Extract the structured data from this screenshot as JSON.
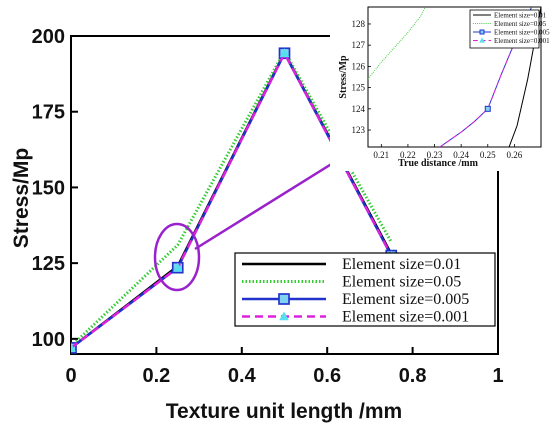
{
  "chart_data": [
    {
      "type": "line",
      "title": "",
      "xlabel": "Texture unit length /mm",
      "ylabel": "Stress/Mp",
      "xlim": [
        0,
        1
      ],
      "ylim": [
        95,
        200
      ],
      "xticks": [
        "0",
        "0.2",
        "0.4",
        "0.6",
        "0.8",
        "1"
      ],
      "yticks": [
        "100",
        "125",
        "150",
        "175",
        "200"
      ],
      "legend_position": "bottom-right",
      "series": [
        {
          "name": "Element size=0.01",
          "color": "#000000",
          "style": "solid",
          "marker": "none",
          "x": [
            0,
            0.25,
            0.5,
            0.75
          ],
          "y": [
            97,
            124,
            194.5,
            128
          ]
        },
        {
          "name": "Element size=0.05",
          "color": "#33cc33",
          "style": "dotted",
          "marker": "none",
          "x": [
            0,
            0.25,
            0.5,
            0.75
          ],
          "y": [
            97.5,
            131,
            195,
            132
          ]
        },
        {
          "name": "Element size=0.005",
          "color": "#2233cc",
          "style": "solid",
          "marker": "square",
          "x": [
            0,
            0.25,
            0.5,
            0.75
          ],
          "y": [
            97,
            123.5,
            194.3,
            127.5
          ]
        },
        {
          "name": "Element size=0.001",
          "color": "#dd22dd",
          "style": "dashed",
          "marker": "triangle",
          "x": [
            0,
            0.25,
            0.5,
            0.75
          ],
          "y": [
            97,
            123.5,
            194.3,
            127.5
          ]
        }
      ]
    },
    {
      "type": "line",
      "title": "",
      "xlabel": "True distance /mm",
      "ylabel": "Stress/Mp",
      "xlim": [
        0.205,
        0.27
      ],
      "ylim": [
        122.2,
        128.8
      ],
      "xticks": [
        "0.21",
        "0.22",
        "0.23",
        "0.24",
        "0.25",
        "0.26"
      ],
      "yticks": [
        "123",
        "124",
        "125",
        "126",
        "127",
        "128"
      ],
      "legend_position": "top-right",
      "series": [
        {
          "name": "Element size=0.01",
          "color": "#000000",
          "style": "solid",
          "marker": "none",
          "x": [
            0.258,
            0.261,
            0.265,
            0.27
          ],
          "y": [
            122.2,
            123.2,
            125.4,
            128.8
          ]
        },
        {
          "name": "Element size=0.05",
          "color": "#33cc33",
          "style": "dotted",
          "marker": "none",
          "x": [
            0.205,
            0.21,
            0.215,
            0.22,
            0.225,
            0.2265
          ],
          "y": [
            125.4,
            126.2,
            126.9,
            127.6,
            128.4,
            128.8
          ]
        },
        {
          "name": "Element size=0.005",
          "color": "#2233cc",
          "style": "solid",
          "marker": "square",
          "x": [
            0.232,
            0.24,
            0.245,
            0.25,
            0.255,
            0.26,
            0.2665
          ],
          "y": [
            122.2,
            122.9,
            123.4,
            124.0,
            125.6,
            127.1,
            128.8
          ]
        },
        {
          "name": "Element size=0.001",
          "color": "#dd22dd",
          "style": "dashed",
          "marker": "triangle",
          "x": [
            0.232,
            0.24,
            0.245,
            0.25,
            0.255,
            0.26,
            0.2665
          ],
          "y": [
            122.2,
            122.9,
            123.4,
            124.0,
            125.6,
            127.1,
            128.8
          ]
        }
      ]
    }
  ]
}
